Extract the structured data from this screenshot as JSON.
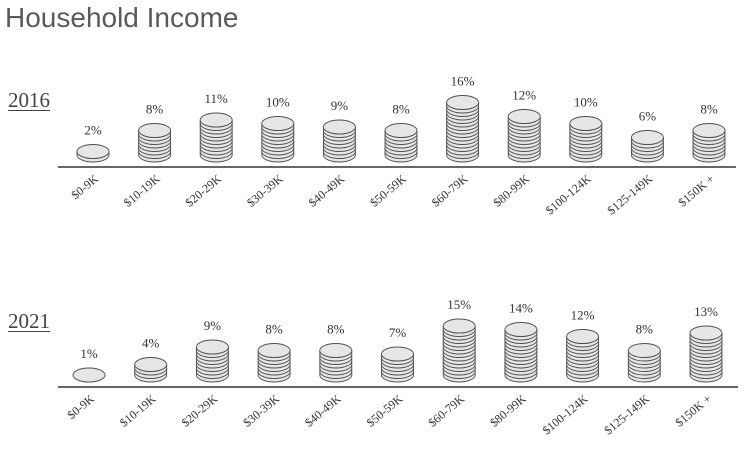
{
  "title": "Household Income",
  "colors": {
    "coin_fill": "#e6e6e6",
    "coin_stroke": "#505050",
    "axis": "#333333",
    "text": "#333333"
  },
  "chart_data": [
    {
      "type": "bar",
      "title": "2016",
      "categories": [
        "$0-9K",
        "$10-19K",
        "$20-29K",
        "$30-39K",
        "$40-49K",
        "$50-59K",
        "$60-79K",
        "$80-99K",
        "$100-124K",
        "$125-149K",
        "$150K +"
      ],
      "values": [
        2,
        8,
        11,
        10,
        9,
        8,
        16,
        12,
        10,
        6,
        8
      ],
      "value_labels": [
        "2%",
        "8%",
        "11%",
        "10%",
        "9%",
        "8%",
        "16%",
        "12%",
        "10%",
        "6%",
        "8%"
      ],
      "unit": "%",
      "style": "stacked coins"
    },
    {
      "type": "bar",
      "title": "2021",
      "categories": [
        "$0-9K",
        "$10-19K",
        "$20-29K",
        "$30-39K",
        "$40-49K",
        "$50-59K",
        "$60-79K",
        "$80-99K",
        "$100-124K",
        "$125-149K",
        "$150K +"
      ],
      "values": [
        1,
        4,
        9,
        8,
        8,
        7,
        15,
        14,
        12,
        8,
        13
      ],
      "value_labels": [
        "1%",
        "4%",
        "9%",
        "8%",
        "8%",
        "7%",
        "15%",
        "14%",
        "12%",
        "8%",
        "13%"
      ],
      "unit": "%",
      "style": "stacked coins"
    }
  ]
}
